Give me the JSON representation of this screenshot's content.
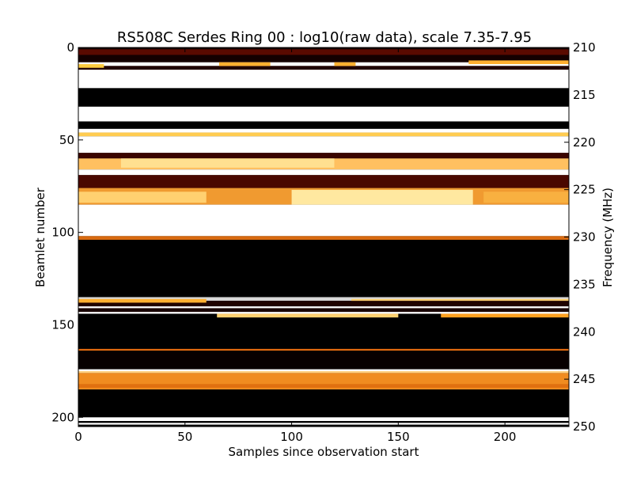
{
  "chart_data": {
    "type": "heatmap",
    "title": "RS508C Serdes Ring 00 : log10(raw data), scale 7.35-7.95",
    "xlabel": "Samples since observation start",
    "ylabel": "Beamlet number",
    "y2label": "Frequency (MHz)",
    "xlim": [
      0,
      230
    ],
    "ylim": [
      205,
      0
    ],
    "y2lim": [
      250,
      210
    ],
    "xticks": [
      0,
      50,
      100,
      150,
      200
    ],
    "yticks": [
      0,
      50,
      100,
      150,
      200
    ],
    "y2ticks": [
      210,
      215,
      220,
      225,
      230,
      235,
      240,
      245,
      250
    ],
    "colormap": "afmhot",
    "scale": [
      7.35,
      7.95
    ],
    "bands": [
      {
        "y0": 0,
        "y1": 9,
        "color": "#140000"
      },
      {
        "y0": 1,
        "y1": 4,
        "color": "#5a0a00"
      },
      {
        "y0": 8,
        "y1": 10,
        "color": "#ffffff"
      },
      {
        "y0": 10,
        "y1": 12,
        "color": "#200200"
      },
      {
        "y0": 12,
        "y1": 22,
        "color": "#ffffff"
      },
      {
        "y0": 22,
        "y1": 32,
        "color": "#000000"
      },
      {
        "y0": 32,
        "y1": 40,
        "color": "#ffffff"
      },
      {
        "y0": 40,
        "y1": 44,
        "color": "#000000"
      },
      {
        "y0": 44,
        "y1": 46,
        "color": "#ffffff"
      },
      {
        "y0": 46,
        "y1": 48,
        "color": "#100000"
      },
      {
        "y0": 48,
        "y1": 57,
        "color": "#ffffff"
      },
      {
        "y0": 57,
        "y1": 60,
        "color": "#3a0500"
      },
      {
        "y0": 60,
        "y1": 66,
        "color": "#ffc060"
      },
      {
        "y0": 66,
        "y1": 69,
        "color": "#ffffff"
      },
      {
        "y0": 69,
        "y1": 76,
        "color": "#4a0800"
      },
      {
        "y0": 76,
        "y1": 85,
        "color": "#f09a30"
      },
      {
        "y0": 85,
        "y1": 102,
        "color": "#ffffff"
      },
      {
        "y0": 102,
        "y1": 104,
        "color": "#d86a10"
      },
      {
        "y0": 104,
        "y1": 135,
        "color": "#000000"
      },
      {
        "y0": 135,
        "y1": 137,
        "color": "#d8d8d8"
      },
      {
        "y0": 137,
        "y1": 140,
        "color": "#200300"
      },
      {
        "y0": 140,
        "y1": 141,
        "color": "#ffffff"
      },
      {
        "y0": 141,
        "y1": 143,
        "color": "#180200"
      },
      {
        "y0": 143,
        "y1": 144,
        "color": "#ffffff"
      },
      {
        "y0": 144,
        "y1": 163,
        "color": "#000000"
      },
      {
        "y0": 163,
        "y1": 164,
        "color": "#e06a10"
      },
      {
        "y0": 164,
        "y1": 174,
        "color": "#080000"
      },
      {
        "y0": 174,
        "y1": 176,
        "color": "#ffffff"
      },
      {
        "y0": 176,
        "y1": 185,
        "color": "#f08c20"
      },
      {
        "y0": 185,
        "y1": 200,
        "color": "#000000"
      },
      {
        "y0": 200,
        "y1": 202,
        "color": "#ffffff"
      },
      {
        "y0": 202,
        "y1": 203,
        "color": "#000000"
      },
      {
        "y0": 203,
        "y1": 204,
        "color": "#ffffff"
      },
      {
        "y0": 204,
        "y1": 205,
        "color": "#000000"
      }
    ],
    "patches": [
      {
        "x0": 0,
        "x1": 12,
        "y0": 9,
        "y1": 11,
        "color": "#ffcc40"
      },
      {
        "x0": 66,
        "x1": 90,
        "y0": 8,
        "y1": 10,
        "color": "#ffb030"
      },
      {
        "x0": 120,
        "x1": 130,
        "y0": 8,
        "y1": 10,
        "color": "#ffb030"
      },
      {
        "x0": 183,
        "x1": 230,
        "y0": 7,
        "y1": 9,
        "color": "#ffb030"
      },
      {
        "x0": 0,
        "x1": 230,
        "y0": 46,
        "y1": 48,
        "color": "#ffcc50"
      },
      {
        "x0": 20,
        "x1": 120,
        "y0": 60,
        "y1": 65,
        "color": "#ffe090"
      },
      {
        "x0": 0,
        "x1": 60,
        "y0": 78,
        "y1": 84,
        "color": "#ffd070"
      },
      {
        "x0": 100,
        "x1": 185,
        "y0": 77,
        "y1": 85,
        "color": "#ffe8a0"
      },
      {
        "x0": 190,
        "x1": 230,
        "y0": 78,
        "y1": 84,
        "color": "#f8b040"
      },
      {
        "x0": 128,
        "x1": 230,
        "y0": 136,
        "y1": 137,
        "color": "#ffd070"
      },
      {
        "x0": 0,
        "x1": 60,
        "y0": 136,
        "y1": 138,
        "color": "#ffb030"
      },
      {
        "x0": 65,
        "x1": 150,
        "y0": 144,
        "y1": 146,
        "color": "#ffd070"
      },
      {
        "x0": 170,
        "x1": 230,
        "y0": 144,
        "y1": 146,
        "color": "#ffa020"
      },
      {
        "x0": 0,
        "x1": 230,
        "y0": 175,
        "y1": 176,
        "color": "#ffd080"
      },
      {
        "x0": 0,
        "x1": 230,
        "y0": 182,
        "y1": 184,
        "color": "#e07010"
      }
    ]
  }
}
